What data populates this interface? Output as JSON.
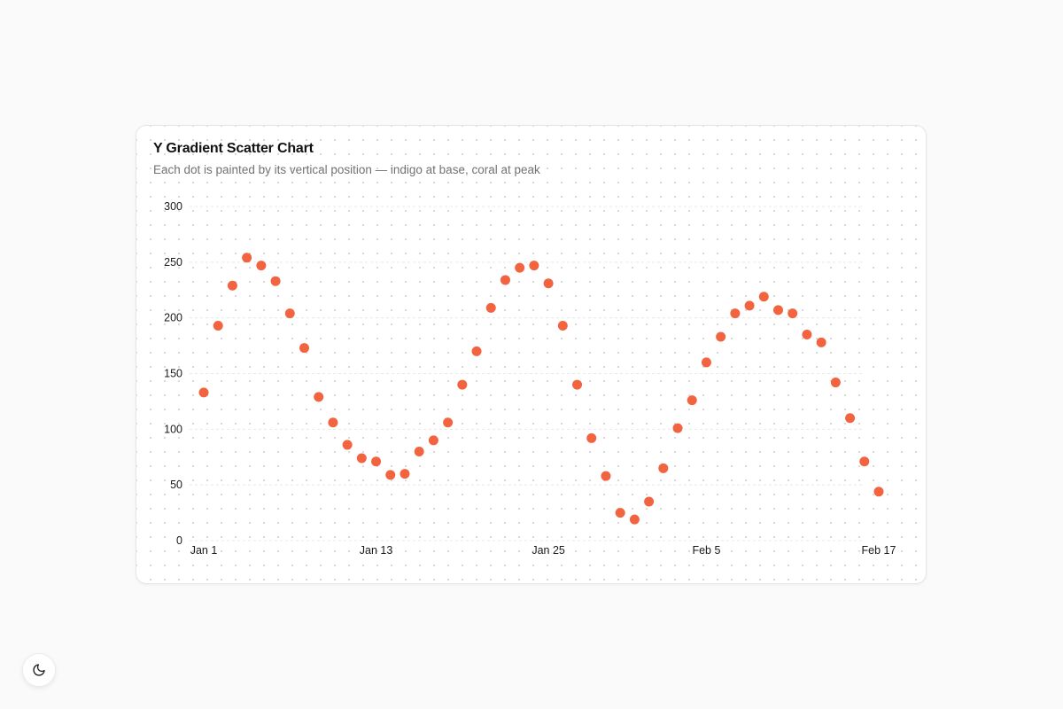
{
  "chart_data": {
    "type": "scatter",
    "title": "Y Gradient Scatter Chart",
    "subtitle": "Each dot is painted by its vertical position — indigo at base, coral at peak",
    "x_ticks": [
      "Jan 1",
      "Jan 13",
      "Jan 25",
      "Feb 5",
      "Feb 17"
    ],
    "y_ticks": [
      "0",
      "50",
      "100",
      "150",
      "200",
      "250",
      "300"
    ],
    "ylim": [
      0,
      300
    ],
    "xlim": [
      "Jan 1",
      "Feb 17"
    ],
    "grid": true,
    "legend": "none",
    "point_color": "#f26440",
    "gradient_low_color": "#6366f1",
    "gradient_high_color": "#f26440",
    "points": [
      {
        "x": "Jan 1",
        "y": 133
      },
      {
        "x": "Jan 2",
        "y": 193
      },
      {
        "x": "Jan 3",
        "y": 229
      },
      {
        "x": "Jan 4",
        "y": 254
      },
      {
        "x": "Jan 5",
        "y": 247
      },
      {
        "x": "Jan 6",
        "y": 233
      },
      {
        "x": "Jan 7",
        "y": 204
      },
      {
        "x": "Jan 8",
        "y": 173
      },
      {
        "x": "Jan 9",
        "y": 129
      },
      {
        "x": "Jan 10",
        "y": 106
      },
      {
        "x": "Jan 11",
        "y": 86
      },
      {
        "x": "Jan 12",
        "y": 74
      },
      {
        "x": "Jan 13",
        "y": 71
      },
      {
        "x": "Jan 14",
        "y": 59
      },
      {
        "x": "Jan 15",
        "y": 60
      },
      {
        "x": "Jan 16",
        "y": 80
      },
      {
        "x": "Jan 17",
        "y": 90
      },
      {
        "x": "Jan 18",
        "y": 106
      },
      {
        "x": "Jan 19",
        "y": 140
      },
      {
        "x": "Jan 20",
        "y": 170
      },
      {
        "x": "Jan 21",
        "y": 209
      },
      {
        "x": "Jan 22",
        "y": 234
      },
      {
        "x": "Jan 23",
        "y": 245
      },
      {
        "x": "Jan 24",
        "y": 247
      },
      {
        "x": "Jan 25",
        "y": 231
      },
      {
        "x": "Jan 26",
        "y": 193
      },
      {
        "x": "Jan 27",
        "y": 140
      },
      {
        "x": "Jan 28",
        "y": 92
      },
      {
        "x": "Jan 29",
        "y": 58
      },
      {
        "x": "Jan 30",
        "y": 25
      },
      {
        "x": "Jan 31",
        "y": 19
      },
      {
        "x": "Feb 1",
        "y": 35
      },
      {
        "x": "Feb 2",
        "y": 65
      },
      {
        "x": "Feb 3",
        "y": 101
      },
      {
        "x": "Feb 4",
        "y": 126
      },
      {
        "x": "Feb 5",
        "y": 160
      },
      {
        "x": "Feb 6",
        "y": 183
      },
      {
        "x": "Feb 7",
        "y": 204
      },
      {
        "x": "Feb 8",
        "y": 211
      },
      {
        "x": "Feb 9",
        "y": 219
      },
      {
        "x": "Feb 10",
        "y": 207
      },
      {
        "x": "Feb 11",
        "y": 204
      },
      {
        "x": "Feb 12",
        "y": 185
      },
      {
        "x": "Feb 13",
        "y": 178
      },
      {
        "x": "Feb 14",
        "y": 142
      },
      {
        "x": "Feb 15",
        "y": 110
      },
      {
        "x": "Feb 16",
        "y": 71
      },
      {
        "x": "Feb 17",
        "y": 44
      }
    ]
  },
  "theme_toggle": {
    "icon": "moon-icon"
  }
}
